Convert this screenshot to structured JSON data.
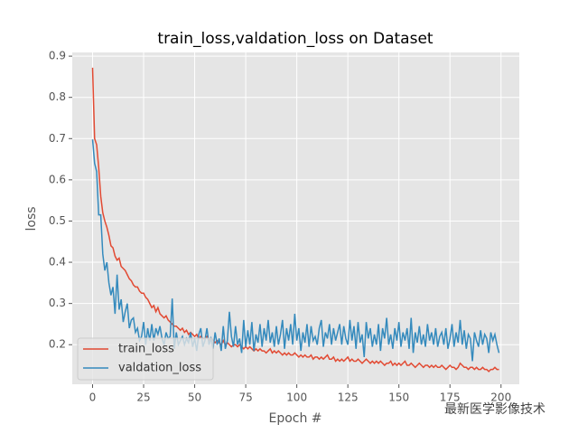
{
  "chart_data": {
    "type": "line",
    "title": "train_loss,valdation_loss on Dataset",
    "x_label": "Epoch #",
    "y_label": "loss",
    "watermark": "最新医学影像技术",
    "x": [
      0,
      1,
      2,
      3,
      4,
      5,
      6,
      7,
      8,
      9,
      10,
      11,
      12,
      13,
      14,
      15,
      16,
      17,
      18,
      19,
      20,
      21,
      22,
      23,
      24,
      25,
      26,
      27,
      28,
      29,
      30,
      31,
      32,
      33,
      34,
      35,
      36,
      37,
      38,
      39,
      40,
      41,
      42,
      43,
      44,
      45,
      46,
      47,
      48,
      49,
      50,
      51,
      52,
      53,
      54,
      55,
      56,
      57,
      58,
      59,
      60,
      61,
      62,
      63,
      64,
      65,
      66,
      67,
      68,
      69,
      70,
      71,
      72,
      73,
      74,
      75,
      76,
      77,
      78,
      79,
      80,
      81,
      82,
      83,
      84,
      85,
      86,
      87,
      88,
      89,
      90,
      91,
      92,
      93,
      94,
      95,
      96,
      97,
      98,
      99,
      100,
      101,
      102,
      103,
      104,
      105,
      106,
      107,
      108,
      109,
      110,
      111,
      112,
      113,
      114,
      115,
      116,
      117,
      118,
      119,
      120,
      121,
      122,
      123,
      124,
      125,
      126,
      127,
      128,
      129,
      130,
      131,
      132,
      133,
      134,
      135,
      136,
      137,
      138,
      139,
      140,
      141,
      142,
      143,
      144,
      145,
      146,
      147,
      148,
      149,
      150,
      151,
      152,
      153,
      154,
      155,
      156,
      157,
      158,
      159,
      160,
      161,
      162,
      163,
      164,
      165,
      166,
      167,
      168,
      169,
      170,
      171,
      172,
      173,
      174,
      175,
      176,
      177,
      178,
      179,
      180,
      181,
      182,
      183,
      184,
      185,
      186,
      187,
      188,
      189,
      190,
      191,
      192,
      193,
      194,
      195,
      196,
      197,
      198,
      199
    ],
    "series": [
      {
        "name": "train_loss",
        "color": "#E24A33",
        "values": [
          0.872,
          0.7,
          0.685,
          0.63,
          0.56,
          0.52,
          0.5,
          0.485,
          0.465,
          0.44,
          0.435,
          0.415,
          0.405,
          0.41,
          0.39,
          0.385,
          0.38,
          0.37,
          0.36,
          0.355,
          0.345,
          0.34,
          0.34,
          0.33,
          0.325,
          0.325,
          0.315,
          0.31,
          0.3,
          0.29,
          0.295,
          0.28,
          0.29,
          0.275,
          0.27,
          0.265,
          0.27,
          0.26,
          0.255,
          0.25,
          0.245,
          0.245,
          0.24,
          0.235,
          0.24,
          0.23,
          0.235,
          0.225,
          0.23,
          0.225,
          0.22,
          0.225,
          0.215,
          0.22,
          0.215,
          0.215,
          0.22,
          0.21,
          0.215,
          0.21,
          0.205,
          0.21,
          0.205,
          0.2,
          0.21,
          0.2,
          0.205,
          0.2,
          0.195,
          0.2,
          0.2,
          0.195,
          0.2,
          0.195,
          0.19,
          0.195,
          0.19,
          0.195,
          0.19,
          0.185,
          0.19,
          0.185,
          0.19,
          0.185,
          0.185,
          0.18,
          0.185,
          0.19,
          0.18,
          0.185,
          0.18,
          0.185,
          0.18,
          0.175,
          0.18,
          0.175,
          0.18,
          0.175,
          0.175,
          0.18,
          0.175,
          0.17,
          0.175,
          0.17,
          0.175,
          0.17,
          0.17,
          0.175,
          0.165,
          0.17,
          0.17,
          0.165,
          0.17,
          0.165,
          0.17,
          0.175,
          0.165,
          0.165,
          0.17,
          0.16,
          0.165,
          0.16,
          0.165,
          0.16,
          0.165,
          0.17,
          0.16,
          0.165,
          0.16,
          0.16,
          0.165,
          0.16,
          0.155,
          0.16,
          0.165,
          0.16,
          0.155,
          0.16,
          0.155,
          0.16,
          0.155,
          0.16,
          0.155,
          0.15,
          0.155,
          0.155,
          0.16,
          0.15,
          0.155,
          0.15,
          0.155,
          0.15,
          0.155,
          0.16,
          0.15,
          0.15,
          0.155,
          0.15,
          0.145,
          0.15,
          0.155,
          0.15,
          0.145,
          0.15,
          0.15,
          0.145,
          0.15,
          0.145,
          0.15,
          0.145,
          0.145,
          0.15,
          0.145,
          0.14,
          0.145,
          0.15,
          0.145,
          0.145,
          0.14,
          0.145,
          0.155,
          0.15,
          0.145,
          0.145,
          0.14,
          0.145,
          0.145,
          0.14,
          0.145,
          0.14,
          0.14,
          0.145,
          0.14,
          0.14,
          0.135,
          0.14,
          0.14,
          0.145,
          0.14,
          0.14
        ]
      },
      {
        "name": "valdation_loss",
        "color": "#348ABD",
        "values": [
          0.698,
          0.64,
          0.62,
          0.515,
          0.515,
          0.42,
          0.38,
          0.4,
          0.35,
          0.32,
          0.34,
          0.275,
          0.37,
          0.285,
          0.31,
          0.255,
          0.28,
          0.3,
          0.24,
          0.26,
          0.265,
          0.23,
          0.24,
          0.21,
          0.22,
          0.255,
          0.2,
          0.24,
          0.21,
          0.25,
          0.21,
          0.24,
          0.225,
          0.245,
          0.215,
          0.2,
          0.23,
          0.215,
          0.22,
          0.312,
          0.19,
          0.23,
          0.2,
          0.21,
          0.22,
          0.2,
          0.215,
          0.205,
          0.23,
          0.195,
          0.215,
          0.185,
          0.225,
          0.24,
          0.195,
          0.21,
          0.24,
          0.2,
          0.215,
          0.19,
          0.23,
          0.2,
          0.215,
          0.185,
          0.245,
          0.19,
          0.21,
          0.28,
          0.22,
          0.195,
          0.245,
          0.2,
          0.215,
          0.18,
          0.26,
          0.195,
          0.235,
          0.2,
          0.255,
          0.185,
          0.225,
          0.205,
          0.25,
          0.195,
          0.24,
          0.21,
          0.26,
          0.205,
          0.23,
          0.195,
          0.245,
          0.2,
          0.225,
          0.26,
          0.19,
          0.24,
          0.21,
          0.25,
          0.2,
          0.275,
          0.21,
          0.24,
          0.185,
          0.23,
          0.205,
          0.25,
          0.195,
          0.245,
          0.21,
          0.22,
          0.2,
          0.24,
          0.26,
          0.195,
          0.23,
          0.215,
          0.25,
          0.2,
          0.24,
          0.21,
          0.23,
          0.25,
          0.2,
          0.245,
          0.215,
          0.2,
          0.26,
          0.21,
          0.245,
          0.19,
          0.255,
          0.205,
          0.225,
          0.17,
          0.255,
          0.215,
          0.24,
          0.195,
          0.225,
          0.2,
          0.25,
          0.185,
          0.24,
          0.215,
          0.265,
          0.2,
          0.225,
          0.19,
          0.24,
          0.21,
          0.255,
          0.195,
          0.23,
          0.21,
          0.24,
          0.19,
          0.265,
          0.18,
          0.23,
          0.205,
          0.245,
          0.2,
          0.225,
          0.195,
          0.25,
          0.21,
          0.23,
          0.2,
          0.24,
          0.195,
          0.22,
          0.23,
          0.2,
          0.24,
          0.19,
          0.215,
          0.25,
          0.195,
          0.23,
          0.205,
          0.26,
          0.2,
          0.235,
          0.19,
          0.225,
          0.215,
          0.16,
          0.23,
          0.21,
          0.195,
          0.235,
          0.2,
          0.225,
          0.215,
          0.18,
          0.23,
          0.21,
          0.225,
          0.2,
          0.18
        ]
      }
    ],
    "xlim": [
      -9.95,
      208.95
    ],
    "ylim": [
      0.104,
      0.909
    ],
    "xticks": [
      0,
      25,
      50,
      75,
      100,
      125,
      150,
      175,
      200
    ],
    "yticks": [
      0.2,
      0.3,
      0.4,
      0.5,
      0.6,
      0.7,
      0.8,
      0.9
    ],
    "grid": true,
    "legend": "lower left"
  }
}
